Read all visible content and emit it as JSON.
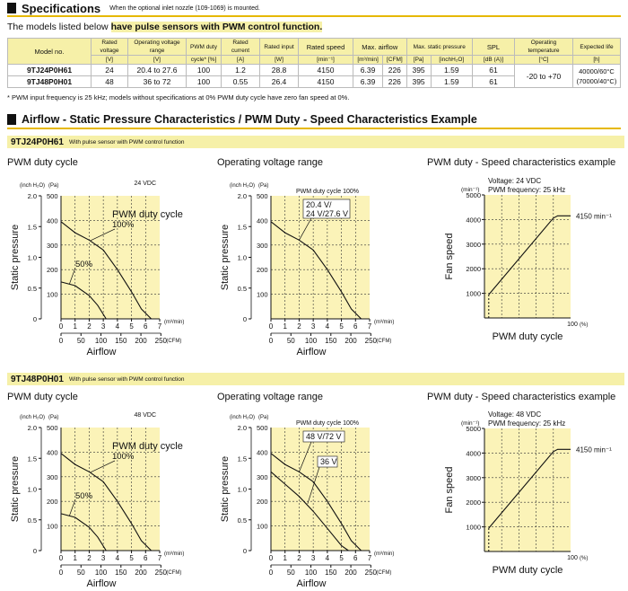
{
  "spec": {
    "title": "Specifications",
    "note": "When the optional inlet nozzle (109-1069) is mounted.",
    "intro_prefix": "The models listed below ",
    "intro_highlight": "have pulse sensors with PWM control function.",
    "headers": [
      [
        "Model no.",
        ""
      ],
      [
        "Rated voltage",
        "[V]"
      ],
      [
        "Operating voltage range",
        "[V]"
      ],
      [
        "PWM duty",
        "cycle* [%]"
      ],
      [
        "Rated current",
        "[A]"
      ],
      [
        "Rated input",
        "[W]"
      ],
      [
        "Rated speed",
        "[min⁻¹]"
      ],
      [
        "Max. airflow",
        "[m³/min]",
        "[CFM]"
      ],
      [
        "Max. static pressure",
        "[Pa]",
        "[inchH₂O]"
      ],
      [
        "SPL",
        "[dB (A)]"
      ],
      [
        "Operating temperature",
        "[°C]"
      ],
      [
        "Expected life",
        "[h]"
      ]
    ],
    "rows": [
      [
        "9TJ24P0H61",
        "24",
        "20.4 to 27.6",
        "100",
        "1.2",
        "28.8",
        "4150",
        "6.39",
        "226",
        "395",
        "1.59",
        "61"
      ],
      [
        "9TJ48P0H01",
        "48",
        "36 to 72",
        "100",
        "0.55",
        "26.4",
        "4150",
        "6.39",
        "226",
        "395",
        "1.59",
        "61"
      ]
    ],
    "op_temp": "-20 to +70",
    "life": [
      "40000/60°C",
      "(70000/40°C)"
    ],
    "footnote": "* PWM input frequency is 25 kHz; models without specifications at 0% PWM duty cycle have zero fan speed at 0%."
  },
  "section2": {
    "title": "Airflow - Static Pressure Characteristics / PWM Duty - Speed Characteristics Example"
  },
  "groups": [
    {
      "model": "9TJ24P0H61",
      "desc": "With pulse sensor with PWM control function",
      "titles": [
        "PWM duty cycle",
        "Operating voltage range",
        "PWM duty - Speed characteristics example"
      ],
      "c1": {
        "unit_in": "(inch H₂O)",
        "unit_pa": "(Pa)",
        "vdc": "24 VDC",
        "lbl_a": "PWM duty cycle",
        "lbl_b": "100%",
        "lbl_c": "50%"
      },
      "c2": {
        "unit_in": "(inch H₂O)",
        "unit_pa": "(Pa)",
        "top": "PWM duty cycle 100%",
        "lbl_a": "20.4 V/",
        "lbl_b": "24 V/27.6 V",
        "lbl_c": ""
      },
      "c3": {
        "unit": "(min⁻¹)",
        "volt": "Voltage: 24 VDC",
        "freq": "PWM frequency: 25 kHz",
        "max": "4150 min⁻¹"
      }
    },
    {
      "model": "9TJ48P0H01",
      "desc": "With pulse sensor with PWM control function",
      "titles": [
        "PWM duty cycle",
        "Operating voltage range",
        "PWM duty - Speed characteristics example"
      ],
      "c1": {
        "unit_in": "(inch H₂O)",
        "unit_pa": "(Pa)",
        "vdc": "48 VDC",
        "lbl_a": "PWM duty cycle",
        "lbl_b": "100%",
        "lbl_c": "50%"
      },
      "c2": {
        "unit_in": "(inch H₂O)",
        "unit_pa": "(Pa)",
        "top": "PWM duty cycle 100%",
        "lbl_a": "48 V/72 V",
        "lbl_b": "",
        "lbl_c": "36 V"
      },
      "c3": {
        "unit": "(min⁻¹)",
        "volt": "Voltage: 48 VDC",
        "freq": "PWM frequency: 25 kHz",
        "max": "4150 min⁻¹"
      }
    }
  ],
  "axes": {
    "ylabel": "Static pressure",
    "xlabel": "Airflow",
    "y_in_ticks": [
      "2.0",
      "1.5",
      "1.0",
      "0.5",
      "0"
    ],
    "y_pa_ticks": [
      "500",
      "400",
      "300",
      "200",
      "100"
    ],
    "x_m3_ticks": [
      "0",
      "1",
      "2",
      "3",
      "4",
      "5",
      "6",
      "7"
    ],
    "x_m3_unit": "(m³/min)",
    "x_cfm_ticks": [
      "0",
      "50",
      "100",
      "150",
      "200",
      "250"
    ],
    "x_cfm_unit": "(CFM)",
    "speed_ylabel": "Fan speed",
    "speed_xlabel": "PWM duty cycle",
    "speed_y_ticks": [
      "5000",
      "4000",
      "3000",
      "2000",
      "1000"
    ],
    "speed_x_end": "100",
    "speed_x_unit": "(%)"
  },
  "chart_data": [
    {
      "type": "line",
      "title": "PWM duty cycle",
      "model": "9TJ24P0H61",
      "xlabel": "Airflow",
      "ylabel": "Static pressure",
      "xlim": [
        0,
        7
      ],
      "ylim": [
        0,
        500
      ],
      "series": [
        {
          "name": "100%",
          "x": [
            0,
            1,
            2,
            3,
            4,
            5,
            5.7,
            6.4
          ],
          "y": [
            395,
            350,
            320,
            280,
            200,
            110,
            40,
            0
          ]
        },
        {
          "name": "50%",
          "x": [
            0,
            1,
            2,
            2.6,
            3.2
          ],
          "y": [
            150,
            135,
            95,
            55,
            0
          ]
        }
      ]
    },
    {
      "type": "line",
      "title": "Operating voltage range",
      "model": "9TJ24P0H61",
      "xlabel": "Airflow",
      "ylabel": "Static pressure",
      "xlim": [
        0,
        7
      ],
      "ylim": [
        0,
        500
      ],
      "series": [
        {
          "name": "20.4 V/24 V/27.6 V",
          "x": [
            0,
            1,
            2,
            3,
            4,
            5,
            5.7,
            6.4
          ],
          "y": [
            395,
            350,
            320,
            280,
            200,
            110,
            40,
            0
          ]
        }
      ]
    },
    {
      "type": "line",
      "title": "PWM duty - Speed characteristics example",
      "model": "9TJ24P0H61",
      "xlabel": "PWM duty cycle",
      "ylabel": "Fan speed",
      "xlim": [
        0,
        100
      ],
      "ylim": [
        0,
        5000
      ],
      "series": [
        {
          "name": "Voltage: 24 VDC",
          "x": [
            0,
            5,
            80,
            85,
            100
          ],
          "y": [
            0,
            950,
            4060,
            4150,
            4150
          ]
        }
      ]
    },
    {
      "type": "line",
      "title": "PWM duty cycle",
      "model": "9TJ48P0H01",
      "xlabel": "Airflow",
      "ylabel": "Static pressure",
      "xlim": [
        0,
        7
      ],
      "ylim": [
        0,
        500
      ],
      "series": [
        {
          "name": "100%",
          "x": [
            0,
            1,
            2,
            3,
            4,
            5,
            5.7,
            6.4
          ],
          "y": [
            395,
            350,
            320,
            280,
            200,
            110,
            40,
            0
          ]
        },
        {
          "name": "50%",
          "x": [
            0,
            1,
            2,
            2.6,
            3.2
          ],
          "y": [
            150,
            135,
            95,
            55,
            0
          ]
        }
      ]
    },
    {
      "type": "line",
      "title": "Operating voltage range",
      "model": "9TJ48P0H01",
      "xlabel": "Airflow",
      "ylabel": "Static pressure",
      "xlim": [
        0,
        7
      ],
      "ylim": [
        0,
        500
      ],
      "series": [
        {
          "name": "48 V/72 V",
          "x": [
            0,
            1,
            2,
            3,
            4,
            5,
            5.7,
            6.4
          ],
          "y": [
            395,
            350,
            320,
            280,
            200,
            110,
            40,
            0
          ]
        },
        {
          "name": "36 V",
          "x": [
            0,
            1,
            2,
            3,
            4,
            5,
            5.5
          ],
          "y": [
            320,
            270,
            220,
            160,
            90,
            20,
            0
          ]
        }
      ]
    },
    {
      "type": "line",
      "title": "PWM duty - Speed characteristics example",
      "model": "9TJ48P0H01",
      "xlabel": "PWM duty cycle",
      "ylabel": "Fan speed",
      "xlim": [
        0,
        100
      ],
      "ylim": [
        0,
        5000
      ],
      "series": [
        {
          "name": "Voltage: 48 VDC",
          "x": [
            0,
            5,
            80,
            85,
            100
          ],
          "y": [
            0,
            950,
            4060,
            4150,
            4150
          ]
        }
      ]
    }
  ]
}
